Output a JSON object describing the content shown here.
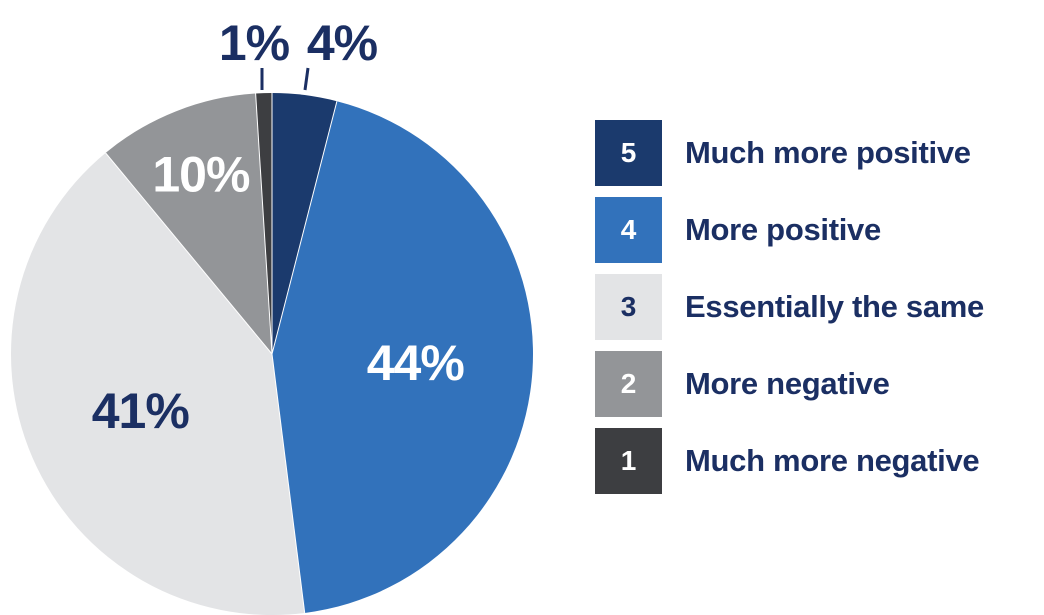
{
  "chart_data": {
    "type": "pie",
    "title": "",
    "slices": [
      {
        "code": "5",
        "label": "Much more positive",
        "value": 4,
        "display": "4%",
        "color": "#1b3a6d",
        "label_color": "#1b2f63",
        "swatch_text_color": "#ffffff"
      },
      {
        "code": "4",
        "label": "More positive",
        "value": 44,
        "display": "44%",
        "color": "#3272bb",
        "label_color": "#ffffff",
        "swatch_text_color": "#ffffff"
      },
      {
        "code": "3",
        "label": "Essentially the same",
        "value": 41,
        "display": "41%",
        "color": "#e3e4e6",
        "label_color": "#1b2f63",
        "swatch_text_color": "#1b2f63"
      },
      {
        "code": "2",
        "label": "More negative",
        "value": 10,
        "display": "10%",
        "color": "#939598",
        "label_color": "#ffffff",
        "swatch_text_color": "#ffffff"
      },
      {
        "code": "1",
        "label": "Much more negative",
        "value": 1,
        "display": "1%",
        "color": "#3d3e41",
        "label_color": "#1b2f63",
        "swatch_text_color": "#ffffff"
      }
    ],
    "legend_position": "right"
  }
}
